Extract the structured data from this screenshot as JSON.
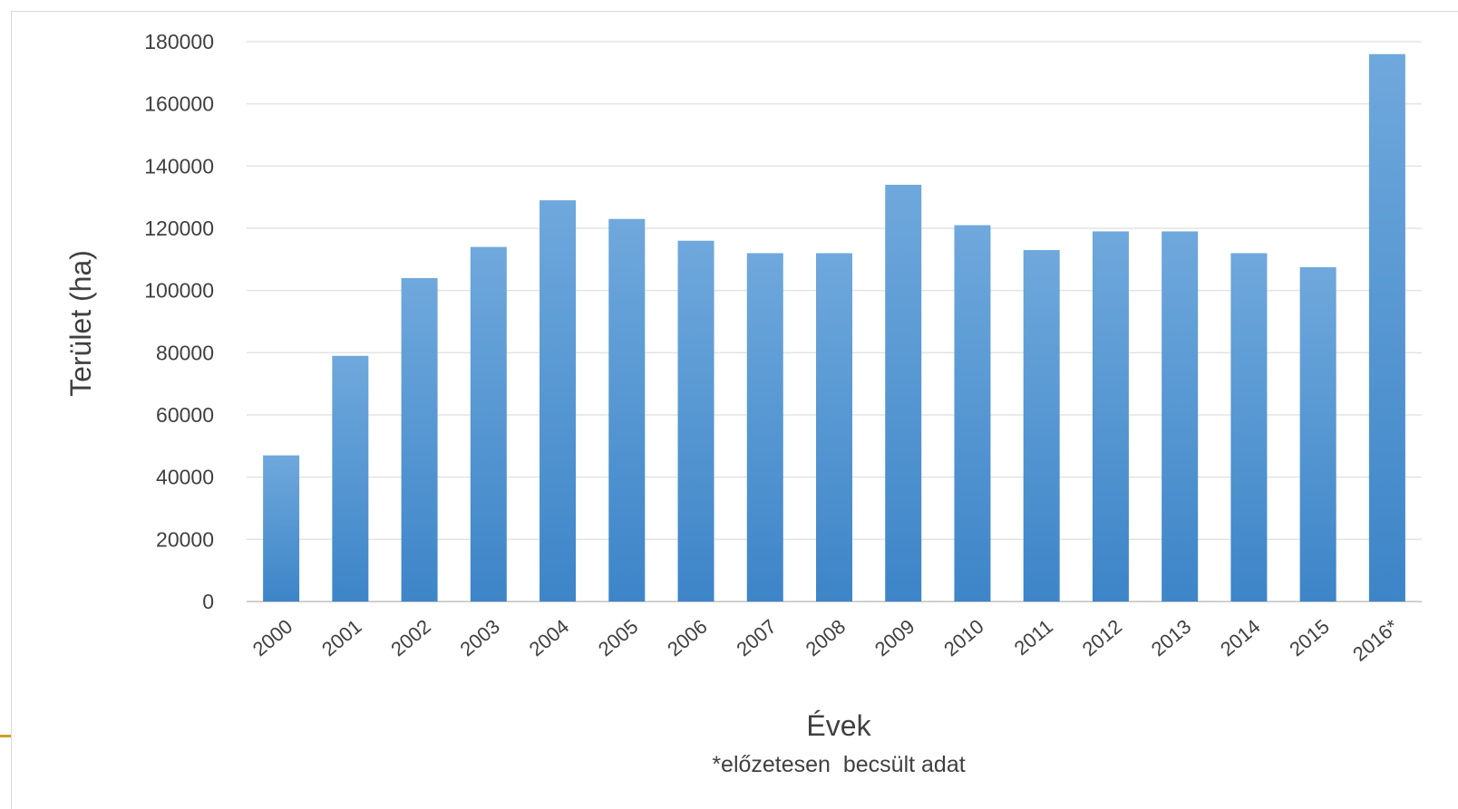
{
  "chart_data": {
    "type": "bar",
    "categories": [
      "2000",
      "2001",
      "2002",
      "2003",
      "2004",
      "2005",
      "2006",
      "2007",
      "2008",
      "2009",
      "2010",
      "2011",
      "2012",
      "2013",
      "2014",
      "2015",
      "2016*"
    ],
    "series": [
      {
        "values": [
          47000,
          79000,
          104000,
          114000,
          129000,
          123000,
          116000,
          112000,
          112000,
          134000,
          121000,
          113000,
          119000,
          119000,
          112000,
          107500,
          176000
        ]
      }
    ],
    "xlabel": "Évek",
    "ylabel": "Terület (ha)",
    "ylim": [
      0,
      180000
    ],
    "yticks": [
      "180000",
      "160000",
      "140000",
      "120000",
      "100000",
      "80000",
      "60000",
      "40000",
      "20000",
      "0"
    ],
    "note": "*előzetesen  becsült adat",
    "grid": true,
    "colors": {
      "bar_top": "#6fa8dc",
      "bar_bottom": "#3d85c8",
      "grid": "#e3e3e3",
      "accent": "#c9a227"
    }
  }
}
